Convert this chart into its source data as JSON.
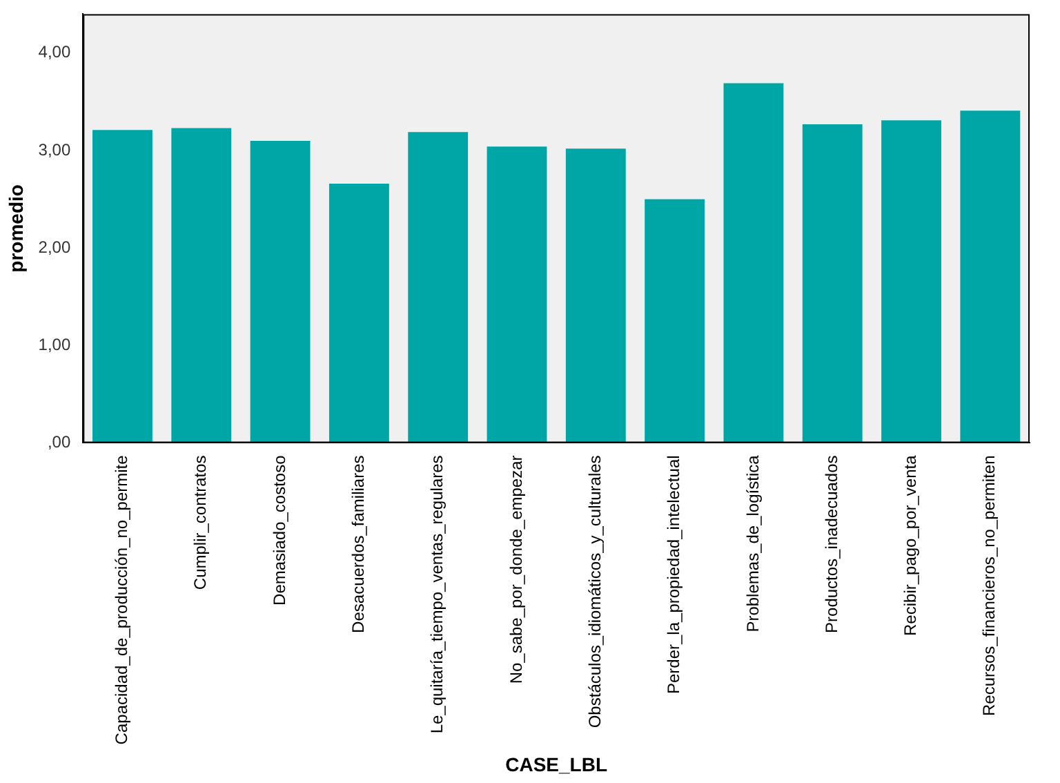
{
  "chart_data": {
    "type": "bar",
    "xlabel": "CASE_LBL",
    "ylabel": "promedio",
    "categories": [
      "Capacidad_de_producción_no_permite",
      "Cumplir_contratos",
      "Demasiado_costoso",
      "Desacuerdos_familiares",
      "Le_quitaría_tiempo_ventas_regulares",
      "No_sabe_por_donde_empezar",
      "Obstáculos_idiomáticos_y_culturales",
      "Perder_la_propiedad_intelectual",
      "Problemas_de_logística",
      "Productos_inadecuados",
      "Recibir_pago_por_venta",
      "Recursos_financieros_no_permiten"
    ],
    "values": [
      3.21,
      3.23,
      3.1,
      2.66,
      3.19,
      3.04,
      3.02,
      2.5,
      3.69,
      3.27,
      3.31,
      3.41
    ],
    "color": "#00a6a6",
    "ylim": [
      0,
      4.4
    ],
    "yticks": [
      {
        "value": 0,
        "label": ",00"
      },
      {
        "value": 1,
        "label": "1,00"
      },
      {
        "value": 2,
        "label": "2,00"
      },
      {
        "value": 3,
        "label": "3,00"
      },
      {
        "value": 4,
        "label": "4,00"
      }
    ],
    "grid": false,
    "legend": false
  }
}
